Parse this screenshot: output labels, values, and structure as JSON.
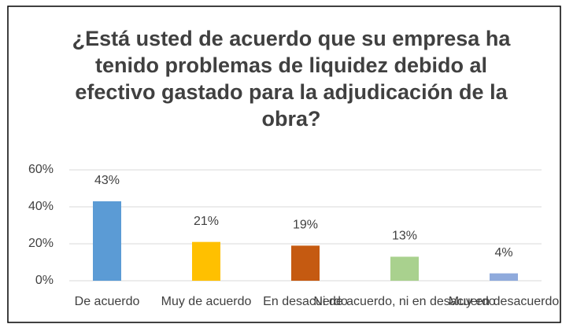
{
  "chart_data": {
    "type": "bar",
    "title": "¿Está usted de acuerdo que su empresa ha tenido problemas de liquidez debido al efectivo gastado para la adjudicación de la obra?",
    "categories": [
      "De acuerdo",
      "Muy de acuerdo",
      "En desacuerdo",
      "Ni de acuerdo, ni en desacuerdo",
      "Muy en desacuerdo"
    ],
    "values": [
      43,
      21,
      19,
      13,
      4
    ],
    "value_labels": [
      "43%",
      "21%",
      "19%",
      "13%",
      "4%"
    ],
    "colors": [
      "#5b9bd5",
      "#ffc000",
      "#c55a11",
      "#a9d18e",
      "#8faadc"
    ],
    "ylim": [
      0,
      60
    ],
    "yticks": [
      {
        "value": 0,
        "label": "0%"
      },
      {
        "value": 20,
        "label": "20%"
      },
      {
        "value": 40,
        "label": "40%"
      },
      {
        "value": 60,
        "label": "60%"
      }
    ],
    "grid": true
  }
}
